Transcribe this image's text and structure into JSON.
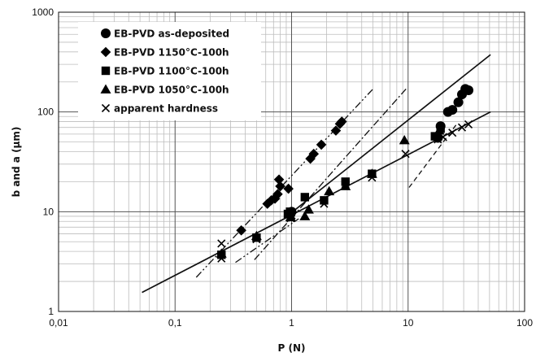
{
  "chart_data": {
    "type": "scatter",
    "xlabel": "P (N)",
    "ylabel": "b and a (µm)",
    "xscale": "log",
    "yscale": "log",
    "xlim": [
      0.01,
      100
    ],
    "ylim": [
      1,
      1000
    ],
    "x_tick_labels": [
      "0,01",
      "0,1",
      "1",
      "10",
      "100"
    ],
    "y_tick_labels": [
      "1",
      "10",
      "100",
      "1000"
    ],
    "grid": true,
    "legend_position": "top-left",
    "series": [
      {
        "name": "EB-PVD as-deposited",
        "marker": "circle",
        "points": [
          [
            0.98,
            9.5
          ],
          [
            1.0,
            10.0
          ],
          [
            18,
            55
          ],
          [
            19,
            72
          ],
          [
            22,
            100
          ],
          [
            24,
            105
          ],
          [
            27,
            125
          ],
          [
            29,
            150
          ],
          [
            31,
            170
          ],
          [
            33,
            165
          ]
        ]
      },
      {
        "name": "EB-PVD 1150°C-100h",
        "marker": "diamond",
        "points": [
          [
            0.37,
            6.5
          ],
          [
            0.62,
            12
          ],
          [
            0.67,
            13
          ],
          [
            0.72,
            13.5
          ],
          [
            0.76,
            15
          ],
          [
            0.78,
            21
          ],
          [
            0.8,
            18
          ],
          [
            0.94,
            17
          ],
          [
            1.45,
            34
          ],
          [
            1.55,
            38
          ],
          [
            1.8,
            47
          ],
          [
            2.4,
            65
          ],
          [
            2.6,
            76
          ],
          [
            2.7,
            80
          ]
        ]
      },
      {
        "name": "EB-PVD 1100°C-100h",
        "marker": "square",
        "points": [
          [
            0.25,
            3.7
          ],
          [
            0.5,
            5.5
          ],
          [
            0.93,
            9.5
          ],
          [
            0.97,
            10
          ],
          [
            1.3,
            14
          ],
          [
            1.9,
            13
          ],
          [
            2.9,
            20
          ],
          [
            4.9,
            24
          ],
          [
            17,
            57
          ],
          [
            19,
            68
          ]
        ]
      },
      {
        "name": "EB-PVD 1050°C-100h",
        "marker": "triangle",
        "points": [
          [
            0.25,
            3.8
          ],
          [
            0.5,
            5.7
          ],
          [
            0.98,
            8.8
          ],
          [
            1.3,
            9
          ],
          [
            1.4,
            10.5
          ],
          [
            2.1,
            16
          ],
          [
            2.9,
            18
          ],
          [
            4.9,
            24
          ],
          [
            9.3,
            52
          ],
          [
            18.5,
            65
          ]
        ]
      },
      {
        "name": "apparent hardness",
        "marker": "x",
        "points": [
          [
            0.25,
            4.8
          ],
          [
            0.25,
            3.4
          ],
          [
            0.5,
            5.3
          ],
          [
            0.98,
            8.6
          ],
          [
            1.0,
            9.2
          ],
          [
            1.9,
            12
          ],
          [
            2.9,
            19
          ],
          [
            4.9,
            22
          ],
          [
            9.5,
            38
          ],
          [
            18,
            53
          ],
          [
            20,
            56
          ],
          [
            24,
            62
          ],
          [
            29,
            70
          ],
          [
            33,
            75
          ]
        ]
      }
    ],
    "fit_lines": [
      {
        "style": "solid",
        "x": [
          0.052,
          51.0
        ],
        "y": [
          1.55,
          100.0
        ]
      },
      {
        "style": "solid",
        "x": [
          1.0,
          51.0
        ],
        "y": [
          9.8,
          375.0
        ]
      },
      {
        "style": "dash-dot-dot",
        "x": [
          0.152,
          4.95
        ],
        "y": [
          2.2,
          168.0
        ]
      },
      {
        "style": "dash-dot",
        "x": [
          0.48,
          9.6
        ],
        "y": [
          3.3,
          170.0
        ]
      },
      {
        "style": "dash-dot-dot",
        "x": [
          0.33,
          1.15
        ],
        "y": [
          3.1,
          8.5
        ]
      },
      {
        "style": "dashed",
        "x": [
          10.2,
          26.0
        ],
        "y": [
          17.5,
          75.0
        ]
      }
    ]
  }
}
